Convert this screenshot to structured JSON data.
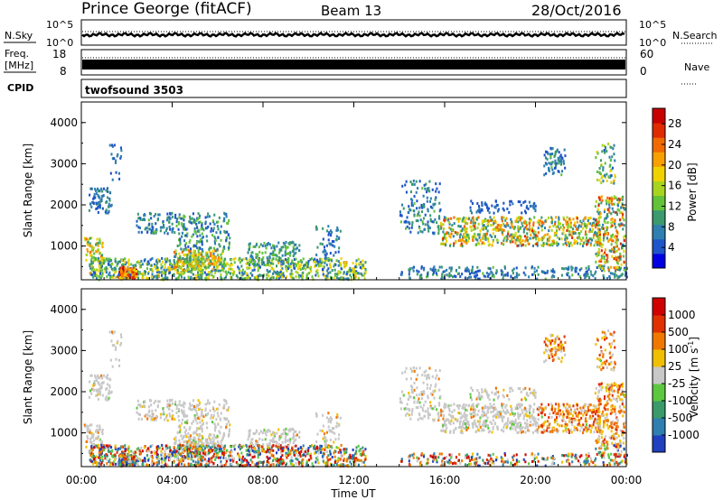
{
  "header": {
    "station": "Prince George (fitACF)",
    "beam": "Beam 13",
    "date": "28/Oct/2016"
  },
  "strip_labels": {
    "nsky": "N.Sky",
    "nsearch": "N.Search",
    "freq_line1": "Freq.",
    "freq_line2": "[MHz]",
    "nave": "Nave",
    "cpid": "CPID",
    "cpid_value": "twofsound 3503",
    "noise_ticks_left": [
      "10^5",
      "10^0"
    ],
    "noise_ticks_right": [
      "10^5",
      "10^0"
    ],
    "freq_ticks": [
      "18",
      "8"
    ],
    "nave_ticks": [
      "60",
      "0"
    ]
  },
  "chart_data": [
    {
      "type": "heatmap",
      "name": "power",
      "ylabel": "Slant Range [km]",
      "y_ticks": [
        "1000",
        "2000",
        "3000",
        "4000"
      ],
      "ylim": [
        180,
        4500
      ],
      "colorbar_label": "Power [dB]",
      "colorbar_ticks": [
        "4",
        "8",
        "12",
        "16",
        "20",
        "24",
        "28"
      ],
      "colorbar_range": [
        0,
        31
      ],
      "colorbar_colors": [
        "#0000e0",
        "#1f55c8",
        "#2f7fb0",
        "#3b9a6e",
        "#63c23a",
        "#a8d420",
        "#f0d200",
        "#f7a000",
        "#f06a00",
        "#e02a00",
        "#c80000"
      ]
    },
    {
      "type": "heatmap",
      "name": "velocity",
      "ylabel": "Slant Range [km]",
      "y_ticks": [
        "1000",
        "2000",
        "3000",
        "4000"
      ],
      "ylim": [
        180,
        4500
      ],
      "colorbar_label": "Velocity [m s",
      "colorbar_label_sup": "-1",
      "colorbar_label_tail": "]",
      "colorbar_ticks": [
        "1000",
        "500",
        "100",
        "25",
        "-25",
        "-100",
        "-500",
        "-1000"
      ],
      "colorbar_colors": [
        "#2040c0",
        "#2f7fb0",
        "#3a9a6a",
        "#5cc840",
        "#c8c8c8",
        "#f0c000",
        "#f07800",
        "#e03000",
        "#d00000"
      ]
    }
  ],
  "time_axis": {
    "ticks": [
      "00:00",
      "04:00",
      "08:00",
      "12:00",
      "16:00",
      "20:00",
      "00:00"
    ],
    "xlabel": "Time UT"
  }
}
